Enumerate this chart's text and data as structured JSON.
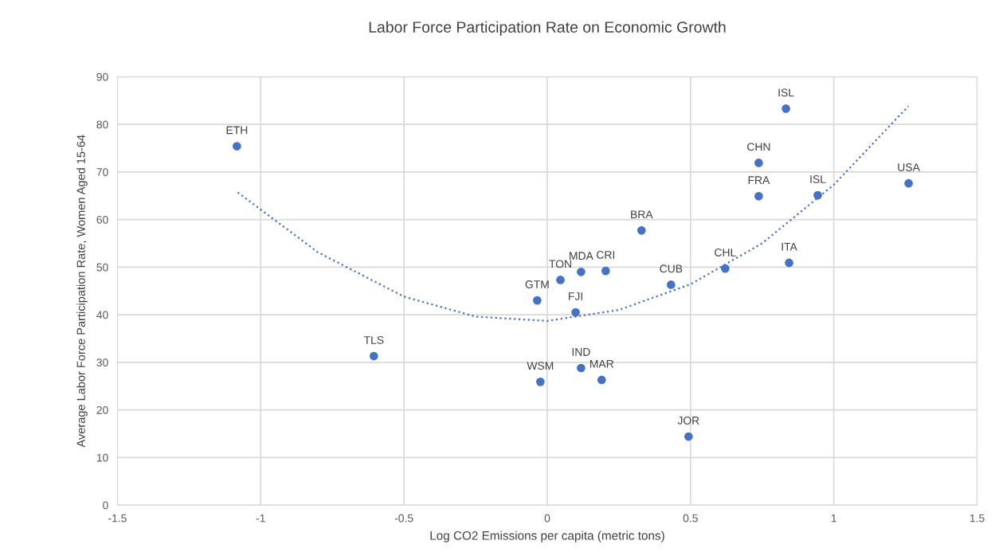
{
  "chart_data": {
    "type": "scatter",
    "title": "Labor Force Participation Rate on Economic Growth",
    "xlabel": "Log CO2 Emissions per capita (metric tons)",
    "ylabel": "Average Labor Force Participation Rate, Women Aged 15-64",
    "xlim": [
      -1.5,
      1.5
    ],
    "xticks": [
      -1.5,
      -1,
      -0.5,
      0,
      0.5,
      1,
      1.5
    ],
    "ylim": [
      0,
      90
    ],
    "yticks": [
      0,
      10,
      20,
      30,
      40,
      50,
      60,
      70,
      80,
      90
    ],
    "grid": true,
    "marker": "circle",
    "series": [
      {
        "color": "#4472c4",
        "x": [
          -1.083,
          -0.605,
          -0.035,
          -0.024,
          0.046,
          0.099,
          0.118,
          0.118,
          0.204,
          0.19,
          0.329,
          0.432,
          0.493,
          0.621,
          0.738,
          0.738,
          0.833,
          0.844,
          0.944,
          1.261
        ],
        "values": [
          75.4,
          31.3,
          43.0,
          25.9,
          47.3,
          40.5,
          49.0,
          28.8,
          49.2,
          26.3,
          57.7,
          46.3,
          14.4,
          49.7,
          71.9,
          64.9,
          83.3,
          50.9,
          65.1,
          67.6
        ],
        "value_labels": [
          "ETH",
          "TLS",
          "GTM",
          "WSM",
          "TON",
          "FJI",
          "MDA",
          "IND",
          "CRI",
          "MAR",
          "BRA",
          "CUB",
          "JOR",
          "CHL",
          "CHN",
          "FRA",
          "ISL",
          "ITA",
          "ISL",
          "USA"
        ]
      },
      {
        "type": "line",
        "color": "#4472c4",
        "line_style": "dotted",
        "marker": "none",
        "x": [
          -1.08,
          -0.8,
          -0.5,
          -0.25,
          0,
          0.25,
          0.5,
          0.75,
          1.0,
          1.26
        ],
        "values": [
          65.7,
          53.1,
          43.8,
          39.6,
          38.7,
          41.0,
          46.4,
          55.0,
          67.3,
          83.8
        ]
      }
    ]
  }
}
